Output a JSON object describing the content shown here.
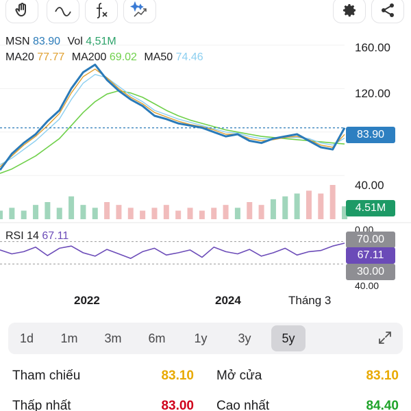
{
  "toolbar": {
    "tools": [
      {
        "name": "hand-icon"
      },
      {
        "name": "wave-icon"
      },
      {
        "name": "function-icon"
      },
      {
        "name": "sparkle-trend-icon"
      }
    ],
    "actions": [
      {
        "name": "gear-icon"
      },
      {
        "name": "share-icon"
      }
    ]
  },
  "legend": {
    "symbol": "MSN",
    "price": "83.90",
    "vol_label": "Vol",
    "vol_value": "4,51M",
    "ma20_label": "MA20",
    "ma20_value": "77.77",
    "ma200_label": "MA200",
    "ma200_value": "69.02",
    "ma50_label": "MA50",
    "ma50_value": "74.46",
    "rsi_label": "RSI 14",
    "rsi_value": "67.11"
  },
  "axis": {
    "y_labels": [
      "160.00",
      "120.00",
      "40.00"
    ],
    "rsi_top_label": "0.00",
    "rsi_bottom_label": "40.00",
    "x_labels": [
      "2022",
      "2024",
      "Tháng 3"
    ]
  },
  "tags": {
    "price": "83.90",
    "volume": "4.51M",
    "rsi_high": "70.00",
    "rsi_value": "67.11",
    "rsi_low": "30.00"
  },
  "colors": {
    "price_line": "#2a7ab8",
    "ma20": "#e0a030",
    "ma200": "#6fd04a",
    "ma50": "#8ccff0",
    "rsi": "#6b4bb8",
    "price_tag": "#2d7fc1",
    "volume_tag": "#1d9a66",
    "rsi_tag": "#6b4bb8",
    "gray_tag": "#8e8e93",
    "up": "#2ea36b",
    "down": "#e06b6b"
  },
  "periods": [
    "1d",
    "1m",
    "3m",
    "6m",
    "1y",
    "3y",
    "5y"
  ],
  "active_period": "5y",
  "stats": {
    "ref_label": "Tham chiếu",
    "ref_value": "83.10",
    "open_label": "Mở cửa",
    "open_value": "83.10",
    "low_label": "Thấp nhất",
    "low_value": "83.00",
    "high_label": "Cao nhất",
    "high_value": "84.40",
    "ref_color": "#e8a900",
    "open_color": "#e8a900",
    "low_color": "#d0021b",
    "high_color": "#1fa32a"
  },
  "chart_data": {
    "type": "line",
    "title": "",
    "xlabel": "",
    "ylabel": "",
    "ylim": [
      20,
      170
    ],
    "x_ticks": [
      "2022",
      "2024",
      "Tháng 3"
    ],
    "series": [
      {
        "name": "MSN",
        "values": [
          45,
          60,
          70,
          78,
          90,
          100,
          120,
          135,
          142,
          128,
          118,
          110,
          104,
          95,
          92,
          88,
          86,
          84,
          80,
          76,
          78,
          72,
          70,
          74,
          76,
          78,
          72,
          66,
          64,
          83.9
        ]
      },
      {
        "name": "MA20",
        "values": [
          48,
          58,
          68,
          76,
          86,
          97,
          116,
          131,
          138,
          130,
          120,
          112,
          106,
          98,
          94,
          90,
          87,
          85,
          82,
          78,
          78,
          74,
          72,
          73,
          75,
          76,
          73,
          68,
          66,
          77.77
        ]
      },
      {
        "name": "MA50",
        "values": [
          50,
          56,
          64,
          72,
          82,
          92,
          110,
          125,
          133,
          130,
          122,
          114,
          108,
          100,
          96,
          92,
          89,
          86,
          83,
          80,
          79,
          76,
          74,
          74,
          75,
          75,
          74,
          70,
          68,
          74.46
        ]
      },
      {
        "name": "MA200",
        "values": [
          42,
          46,
          52,
          58,
          66,
          74,
          86,
          98,
          108,
          115,
          118,
          116,
          112,
          106,
          100,
          95,
          91,
          88,
          85,
          82,
          80,
          78,
          76,
          75,
          74,
          73,
          72,
          71,
          70,
          69.02
        ]
      }
    ],
    "volume": [
      3,
      4,
      3,
      5,
      6,
      4,
      8,
      5,
      4,
      6,
      5,
      4,
      3,
      4,
      5,
      3,
      4,
      3,
      4,
      5,
      4,
      6,
      5,
      7,
      8,
      9,
      10,
      9,
      12,
      4.51
    ],
    "rsi": [
      55,
      48,
      52,
      60,
      45,
      58,
      62,
      50,
      44,
      56,
      48,
      40,
      52,
      58,
      46,
      50,
      55,
      42,
      60,
      52,
      48,
      56,
      44,
      50,
      58,
      46,
      52,
      54,
      62,
      67.11
    ],
    "rsi_levels": [
      70,
      30
    ]
  }
}
